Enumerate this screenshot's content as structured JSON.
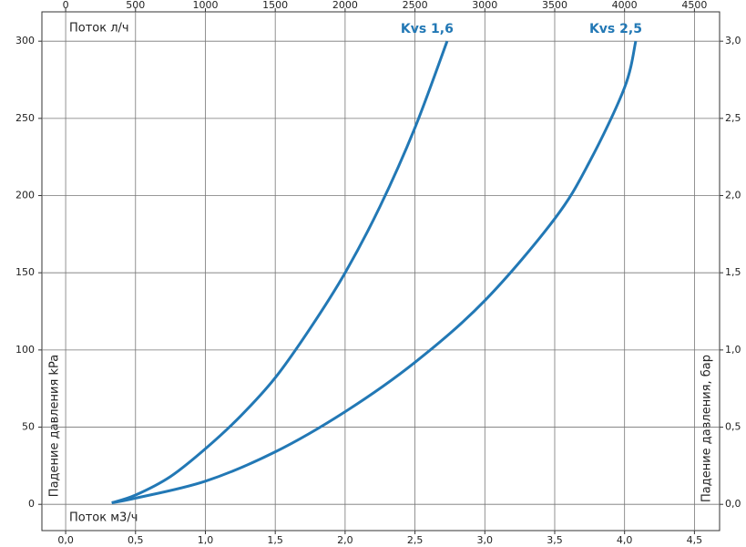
{
  "chart_data": {
    "type": "line",
    "x_label_top": "Поток л/ч",
    "x_label": "Поток м3/ч",
    "y_label": "Падение давления kPa",
    "y2_label": "Падение давления, бар",
    "xlim": [
      -0.17,
      4.68
    ],
    "xticks": [
      {
        "value": 0,
        "label": "0,0"
      },
      {
        "value": 0.5,
        "label": "0,5"
      },
      {
        "value": 1,
        "label": "1,0"
      },
      {
        "value": 1.5,
        "label": "1,5"
      },
      {
        "value": 2,
        "label": "2,0"
      },
      {
        "value": 2.5,
        "label": "2,5"
      },
      {
        "value": 3,
        "label": "3,0"
      },
      {
        "value": 3.5,
        "label": "3,5"
      },
      {
        "value": 4,
        "label": "4,0"
      },
      {
        "value": 4.5,
        "label": "4,5"
      }
    ],
    "x2lim": [
      -170,
      4680
    ],
    "x2ticks": [
      0,
      500,
      1000,
      1500,
      2000,
      2500,
      3000,
      3500,
      4000,
      4500
    ],
    "ylim": [
      -17,
      319
    ],
    "yticks": [
      0,
      50,
      100,
      150,
      200,
      250,
      300
    ],
    "y2lim": [
      -0.17,
      3.19
    ],
    "y2ticks": [
      {
        "value": 0,
        "label": "0,0"
      },
      {
        "value": 0.5,
        "label": "0,5"
      },
      {
        "value": 1,
        "label": "1,0"
      },
      {
        "value": 1.5,
        "label": "1,5"
      },
      {
        "value": 2,
        "label": "2,0"
      },
      {
        "value": 2.5,
        "label": "2,5"
      },
      {
        "value": 3,
        "label": "3,0"
      }
    ],
    "grid": true,
    "series": [
      {
        "name": "Kvs 1,6",
        "color": "#2278b5",
        "x": [
          0.33,
          0.5,
          0.75,
          1.0,
          1.25,
          1.5,
          1.75,
          2.0,
          2.25,
          2.5,
          2.73
        ],
        "values": [
          1,
          6,
          18,
          36,
          57,
          82,
          114,
          150,
          193,
          244,
          300
        ]
      },
      {
        "name": "Kvs 2,5",
        "color": "#2278b5",
        "x": [
          0.33,
          0.5,
          1.0,
          1.5,
          2.0,
          2.5,
          3.0,
          3.5,
          3.75,
          4.0,
          4.08
        ],
        "values": [
          1,
          4,
          15,
          34,
          60,
          92,
          132,
          185,
          222,
          270,
          300
        ]
      }
    ]
  }
}
